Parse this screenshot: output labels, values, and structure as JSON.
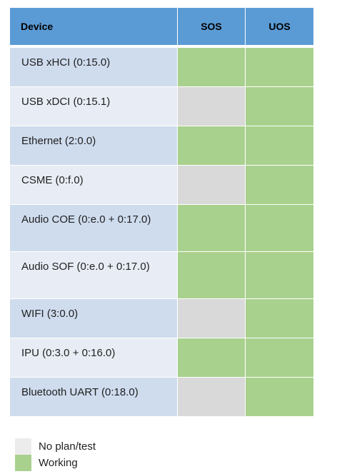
{
  "table": {
    "headers": {
      "device": "Device",
      "sos": "SOS",
      "uos": "UOS"
    },
    "rows": [
      {
        "device": "USB xHCI (0:15.0)",
        "sos": "working",
        "uos": "working"
      },
      {
        "device": "USB xDCI (0:15.1)",
        "sos": "noplan",
        "uos": "working"
      },
      {
        "device": "Ethernet (2:0.0)",
        "sos": "working",
        "uos": "working"
      },
      {
        "device": "CSME (0:f.0)",
        "sos": "noplan",
        "uos": "working"
      },
      {
        "device": "Audio COE (0:e.0 + 0:17.0)",
        "sos": "working",
        "uos": "working"
      },
      {
        "device": "Audio SOF (0:e.0 + 0:17.0)",
        "sos": "working",
        "uos": "working"
      },
      {
        "device": "WIFI (3:0.0)",
        "sos": "noplan",
        "uos": "working"
      },
      {
        "device": "IPU (0:3.0 + 0:16.0)",
        "sos": "working",
        "uos": "working"
      },
      {
        "device": "Bluetooth UART (0:18.0)",
        "sos": "noplan",
        "uos": "working"
      }
    ]
  },
  "legend": [
    {
      "status": "noplan",
      "label": "No plan/test",
      "color": "#ececec"
    },
    {
      "status": "working",
      "label": "Working",
      "color": "#a9d18e"
    }
  ],
  "colors": {
    "header": "#5b9bd5",
    "working": "#a9d18e",
    "noplan": "#d9d9d9",
    "device_odd": "#cfdcee",
    "device_even": "#e8edf5"
  }
}
